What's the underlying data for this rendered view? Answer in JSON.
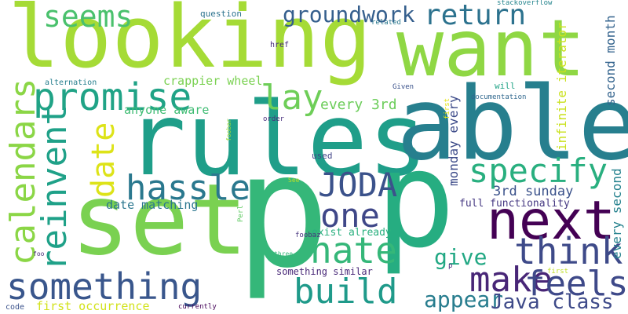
{
  "words": [
    {
      "text": "looking",
      "color": "#a5db36",
      "vertical": false
    },
    {
      "text": "want",
      "color": "#8fd744",
      "vertical": false
    },
    {
      "text": "rules",
      "color": "#1f9e89",
      "vertical": false
    },
    {
      "text": "able",
      "color": "#277f8e",
      "vertical": false
    },
    {
      "text": "set",
      "color": "#7ad151",
      "vertical": false
    },
    {
      "text": "p",
      "color": "#35b779",
      "vertical": false
    },
    {
      "text": "p",
      "color": "#26ad81",
      "vertical": false
    },
    {
      "text": "return",
      "color": "#2c728e",
      "vertical": false
    },
    {
      "text": "seems",
      "color": "#4ac16d",
      "vertical": false
    },
    {
      "text": "groundwork",
      "color": "#355f8d",
      "vertical": false
    },
    {
      "text": "promise",
      "color": "#20a386",
      "vertical": false
    },
    {
      "text": "lay",
      "color": "#6ece58",
      "vertical": false
    },
    {
      "text": "calendars",
      "color": "#8bd646",
      "vertical": true
    },
    {
      "text": "reinvent",
      "color": "#1fa188",
      "vertical": true
    },
    {
      "text": "date",
      "color": "#dde318",
      "vertical": true
    },
    {
      "text": "hassle",
      "color": "#2a788e",
      "vertical": false
    },
    {
      "text": "JODA",
      "color": "#3b528b",
      "vertical": false
    },
    {
      "text": "specify",
      "color": "#29af7f",
      "vertical": false
    },
    {
      "text": "one",
      "color": "#3f4788",
      "vertical": false
    },
    {
      "text": "next",
      "color": "#440154",
      "vertical": false
    },
    {
      "text": "think",
      "color": "#3e4a89",
      "vertical": false
    },
    {
      "text": "hate",
      "color": "#35b779",
      "vertical": false
    },
    {
      "text": "give",
      "color": "#22a884",
      "vertical": false
    },
    {
      "text": "make",
      "color": "#482677",
      "vertical": false
    },
    {
      "text": "feels",
      "color": "#3e4989",
      "vertical": false
    },
    {
      "text": "build",
      "color": "#1f9a8a",
      "vertical": false
    },
    {
      "text": "appear",
      "color": "#287d8e",
      "vertical": false
    },
    {
      "text": "Java class",
      "color": "#3e4a89",
      "vertical": false
    },
    {
      "text": "something",
      "color": "#39568c",
      "vertical": false
    },
    {
      "text": "every 3rd",
      "color": "#6ccd5a",
      "vertical": false
    },
    {
      "text": "crappier wheel",
      "color": "#7ad151",
      "vertical": false
    },
    {
      "text": "anyone aware",
      "color": "#3fbc73",
      "vertical": false
    },
    {
      "text": "date matching",
      "color": "#2a768e",
      "vertical": false
    },
    {
      "text": "3rd sunday",
      "color": "#3b528b",
      "vertical": false
    },
    {
      "text": "full functionality",
      "color": "#453882",
      "vertical": false
    },
    {
      "text": "exist already",
      "color": "#2ab07f",
      "vertical": false
    },
    {
      "text": "something similar",
      "color": "#482878",
      "vertical": false
    },
    {
      "text": "first occurrence",
      "color": "#d2e21b",
      "vertical": false
    },
    {
      "text": "infinite iterator",
      "color": "#cae11f",
      "vertical": true
    },
    {
      "text": "second month",
      "color": "#33638d",
      "vertical": true
    },
    {
      "text": "every second",
      "color": "#26828e",
      "vertical": true
    },
    {
      "text": "monday every",
      "color": "#3e4c8a",
      "vertical": true
    },
    {
      "text": "question",
      "color": "#2c738e",
      "vertical": false
    },
    {
      "text": "stackoverflow",
      "color": "#25858e",
      "vertical": false
    },
    {
      "text": "related",
      "color": "#2a788e",
      "vertical": false
    },
    {
      "text": "href",
      "color": "#472c7a",
      "vertical": false
    },
    {
      "text": "alternation",
      "color": "#277f8e",
      "vertical": false
    },
    {
      "text": "Given",
      "color": "#3b528b",
      "vertical": false
    },
    {
      "text": "will",
      "color": "#20a386",
      "vertical": false
    },
    {
      "text": "documentation",
      "color": "#31688e",
      "vertical": false
    },
    {
      "text": "first",
      "color": "#e5e419",
      "vertical": true
    },
    {
      "text": "order",
      "color": "#472d7b",
      "vertical": false
    },
    {
      "text": "used",
      "color": "#414487",
      "vertical": false
    },
    {
      "text": "foobar",
      "color": "#9bd93c",
      "vertical": true
    },
    {
      "text": "See",
      "color": "#bade28",
      "vertical": false
    },
    {
      "text": "Perl",
      "color": "#5ec962",
      "vertical": true
    },
    {
      "text": "foobaz",
      "color": "#46337e",
      "vertical": false
    },
    {
      "text": "three",
      "color": "#35b779",
      "vertical": false
    },
    {
      "text": "p",
      "color": "#482677",
      "vertical": false
    },
    {
      "text": "first",
      "color": "#c0df25",
      "vertical": false
    },
    {
      "text": "foo",
      "color": "#472c7a",
      "vertical": false
    },
    {
      "text": "code",
      "color": "#3b528b",
      "vertical": false
    },
    {
      "text": "currently",
      "color": "#450559",
      "vertical": false
    }
  ]
}
